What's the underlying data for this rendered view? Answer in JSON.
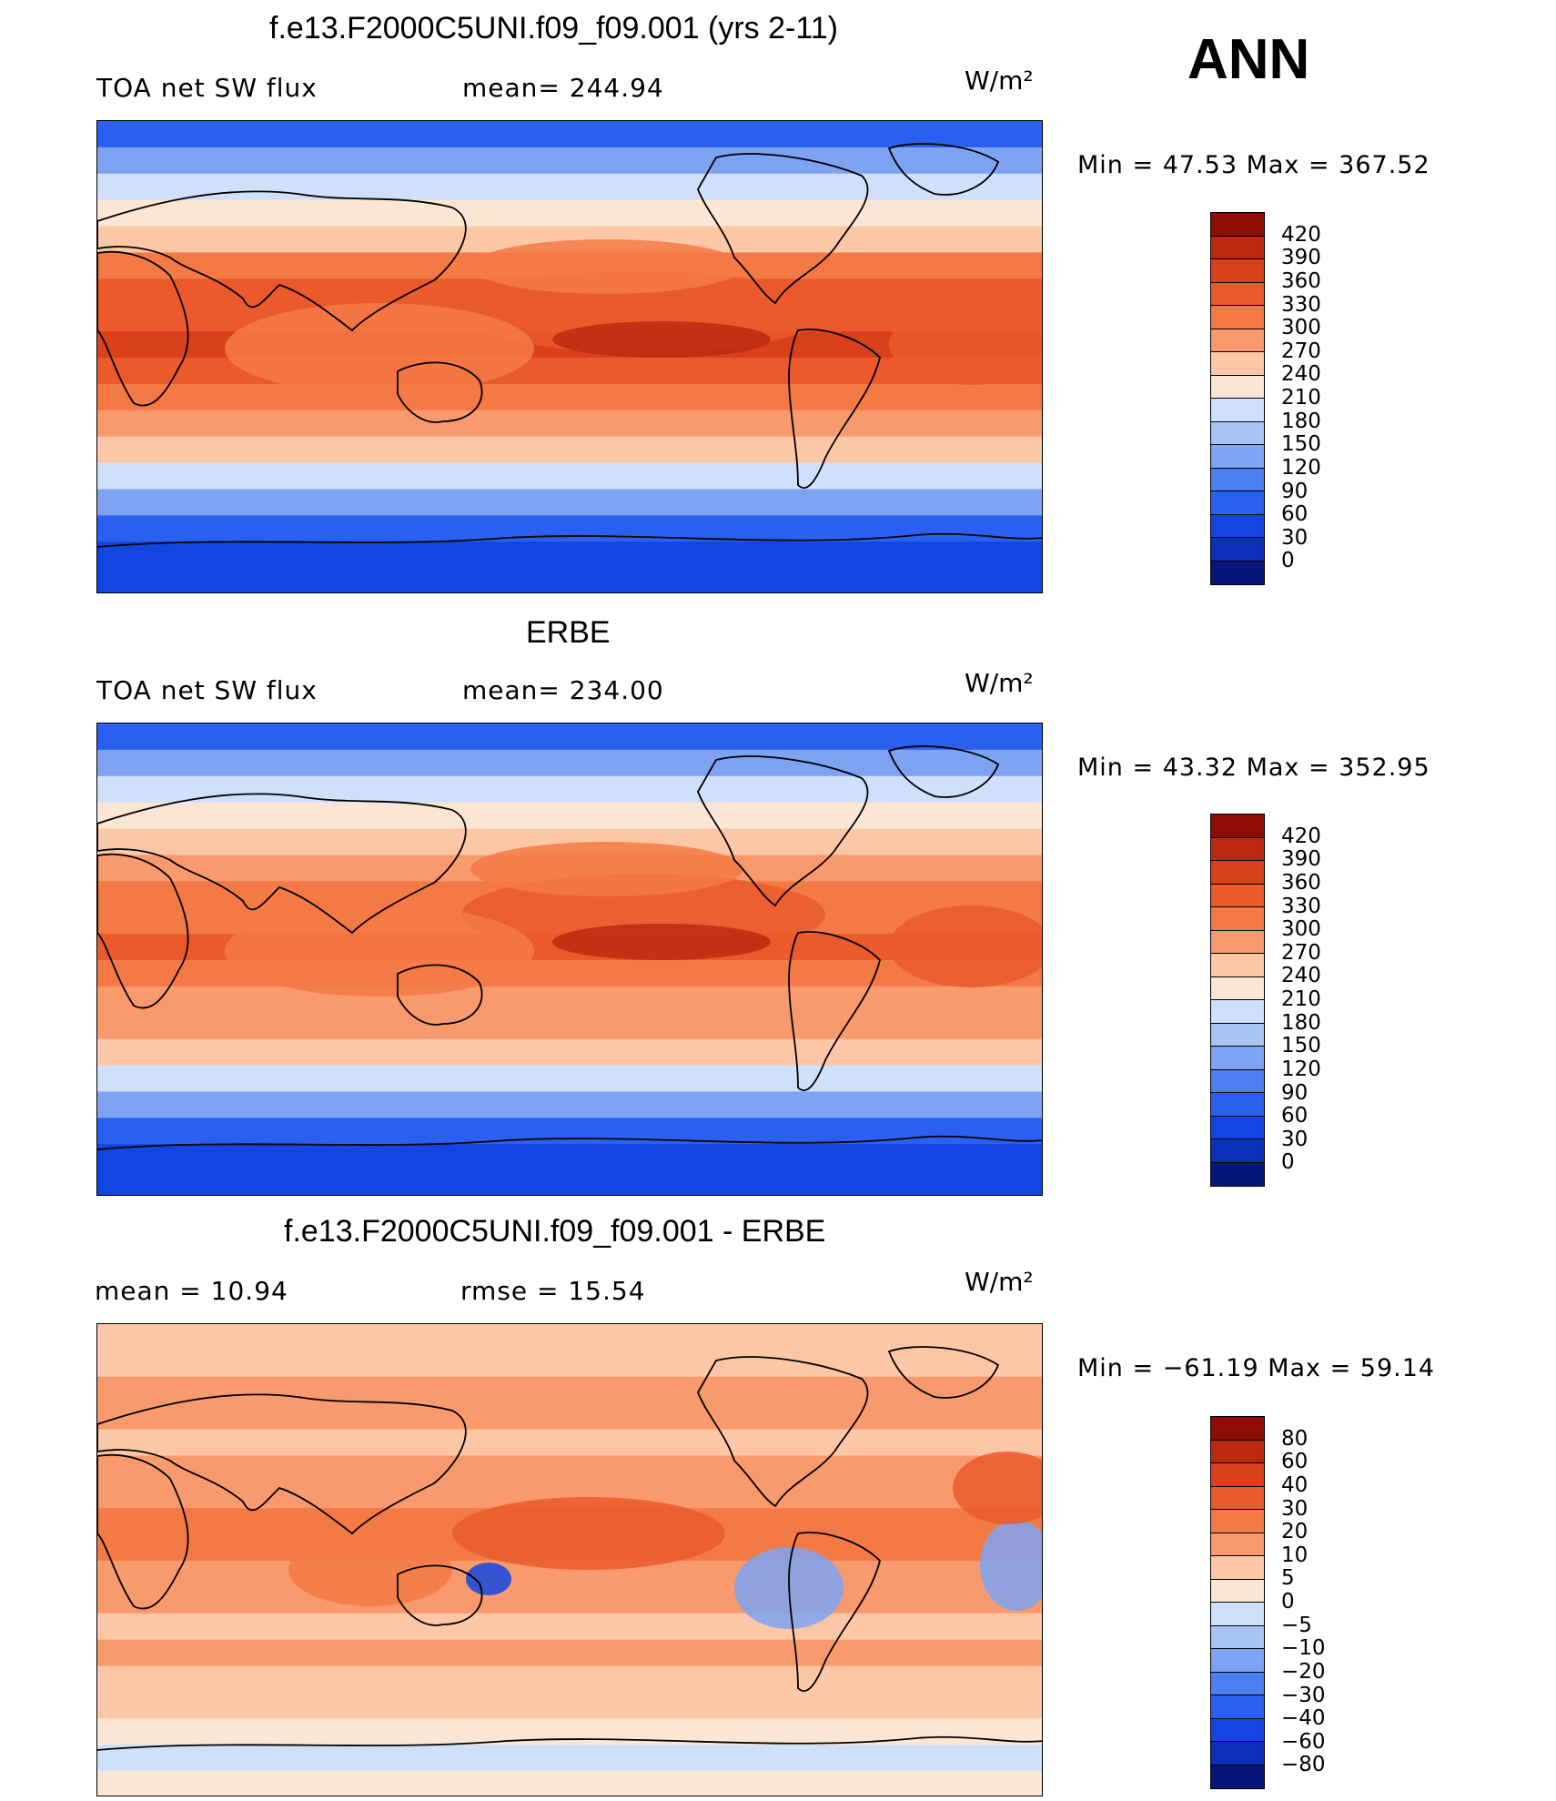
{
  "season": "ANN",
  "units_label": "W/m²",
  "palettes": {
    "abs": [
      "#08157a",
      "#0a2fb8",
      "#1346e0",
      "#2a60f0",
      "#4e7ff0",
      "#7ea3f2",
      "#a8c3f6",
      "#cfe0fb",
      "#fbe6d4",
      "#fcc7a6",
      "#f89a6d",
      "#f47a45",
      "#ea5a2a",
      "#d9401c",
      "#bb2a10",
      "#8d0d04"
    ],
    "diff": [
      "#08157a",
      "#0a2fb8",
      "#1346e0",
      "#2a60f0",
      "#4e7ff0",
      "#7ea3f2",
      "#a8c3f6",
      "#cfe0fb",
      "#fbe6d4",
      "#fcc7a6",
      "#f89a6d",
      "#f47a45",
      "#ea5a2a",
      "#d9401c",
      "#bb2a10",
      "#8d0d04"
    ]
  },
  "panels": [
    {
      "title": "f.e13.F2000C5UNI.f09_f09.001 (yrs 2-11)",
      "left_label": "TOA  net  SW  flux",
      "center_label": "mean=  244.94",
      "minmax": "Min  =    47.53  Max  =  367.52",
      "colorbar_labels": [
        "420",
        "390",
        "360",
        "330",
        "300",
        "270",
        "240",
        "210",
        "180",
        "150",
        "120",
        "90",
        "60",
        "30",
        "0"
      ]
    },
    {
      "title": "ERBE",
      "left_label": "TOA  net  SW  flux",
      "center_label": "mean=  234.00",
      "minmax": "Min  =    43.32  Max  =  352.95",
      "colorbar_labels": [
        "420",
        "390",
        "360",
        "330",
        "300",
        "270",
        "240",
        "210",
        "180",
        "150",
        "120",
        "90",
        "60",
        "30",
        "0"
      ]
    },
    {
      "title": "f.e13.F2000C5UNI.f09_f09.001 - ERBE",
      "left_label": "mean  =     10.94",
      "center_label": "rmse  =     15.54",
      "minmax": "Min  =  −61.19  Max  =    59.14",
      "colorbar_labels": [
        "80",
        "60",
        "40",
        "30",
        "20",
        "10",
        "5",
        "0",
        "−5",
        "−10",
        "−20",
        "−30",
        "−40",
        "−60",
        "−80"
      ]
    }
  ]
}
